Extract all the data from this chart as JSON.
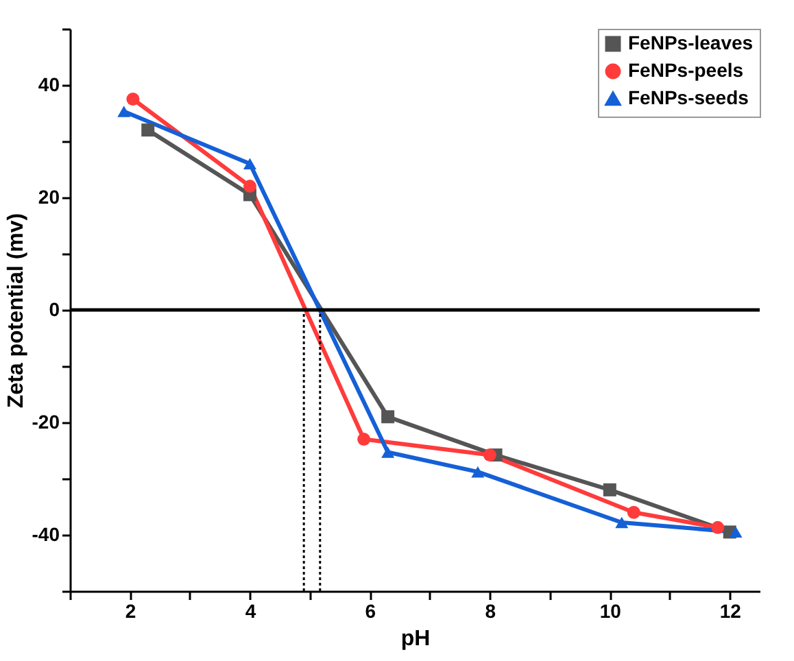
{
  "chart_data": {
    "type": "line",
    "xlabel": "pH",
    "ylabel": "Zeta potential (mv)",
    "xlim": [
      1,
      12.5
    ],
    "ylim": [
      -50,
      50
    ],
    "xticks": [
      {
        "value": 1,
        "label": null
      },
      2,
      {
        "value": 3,
        "label": null
      },
      4,
      {
        "value": 5,
        "label": null
      },
      6,
      {
        "value": 7,
        "label": null
      },
      8,
      {
        "value": 9,
        "label": null
      },
      10,
      {
        "value": 11,
        "label": null
      },
      12
    ],
    "yticks": [
      {
        "value": -50,
        "label": null
      },
      -40,
      {
        "value": -30,
        "label": null
      },
      -20,
      {
        "value": -10,
        "label": null
      },
      0,
      {
        "value": 10,
        "label": null
      },
      20,
      {
        "value": 30,
        "label": null
      },
      40,
      {
        "value": 50,
        "label": null
      }
    ],
    "series": [
      {
        "name": "FeNPs-leaves",
        "color": "#555555",
        "marker": "square",
        "x": [
          2.3,
          4,
          6.3,
          8.1,
          10,
          12
        ],
        "values": [
          32,
          20.5,
          -19,
          -25.8,
          -32,
          -39.5
        ]
      },
      {
        "name": "FeNPs-peels",
        "color": "#ff3b3b",
        "marker": "circle",
        "x": [
          2.05,
          4,
          5.9,
          8,
          10.4,
          11.8
        ],
        "values": [
          37.5,
          22,
          -23,
          -25.8,
          -36,
          -38.7
        ]
      },
      {
        "name": "FeNPs-seeds",
        "color": "#1560d6",
        "marker": "triangle",
        "x": [
          1.9,
          4,
          6.3,
          7.8,
          10.2,
          12.1
        ],
        "values": [
          35.3,
          26,
          -25.3,
          -28.8,
          -37.8,
          -39.5
        ]
      }
    ],
    "ref_lines": [
      {
        "axis": "y",
        "value": 0,
        "color": "#000000",
        "line_style": "solid"
      },
      {
        "axis": "x",
        "value": 4.9,
        "color": "#000000",
        "line_style": "dotted"
      },
      {
        "axis": "x",
        "value": 5.17,
        "color": "#000000",
        "line_style": "dotted"
      }
    ],
    "legend": "top right",
    "grid": false
  }
}
